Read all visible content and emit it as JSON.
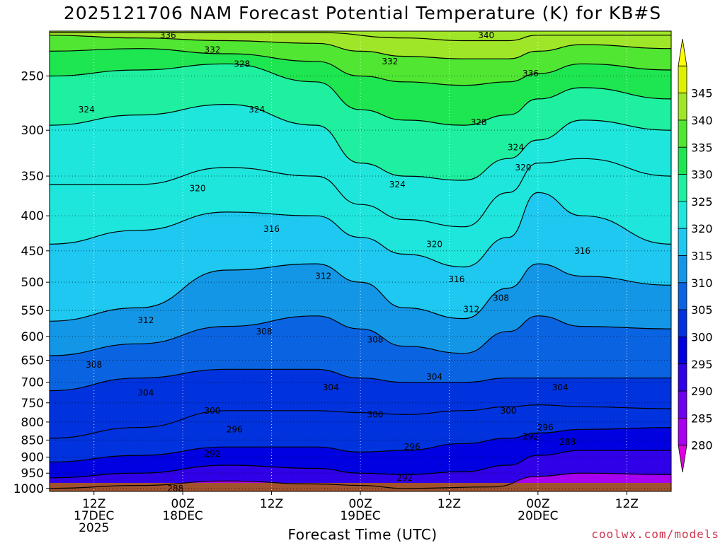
{
  "title": "2025121706 NAM Forecast Potential Temperature (K) for KB#S",
  "credit": "coolwx.com/models",
  "chart_data": {
    "type": "heatmap",
    "title": "2025121706 NAM Forecast Potential Temperature (K) for KB#S",
    "xlabel": "Forecast Time (UTC)",
    "ylabel": "",
    "y_scale": "log-pressure",
    "y_ticks": [
      250,
      300,
      350,
      400,
      450,
      500,
      550,
      600,
      650,
      700,
      750,
      800,
      850,
      900,
      950,
      1000
    ],
    "y_range_hPa": [
      1010,
      215
    ],
    "x_range_hours": [
      0,
      84
    ],
    "x_ticks": [
      {
        "hour": 6,
        "lines": [
          "12Z",
          "17DEC",
          "2025"
        ]
      },
      {
        "hour": 18,
        "lines": [
          "00Z",
          "18DEC"
        ]
      },
      {
        "hour": 30,
        "lines": [
          "12Z"
        ]
      },
      {
        "hour": 42,
        "lines": [
          "00Z",
          "19DEC"
        ]
      },
      {
        "hour": 54,
        "lines": [
          "12Z"
        ]
      },
      {
        "hour": 66,
        "lines": [
          "00Z",
          "20DEC"
        ]
      },
      {
        "hour": 78,
        "lines": [
          "12Z"
        ]
      }
    ],
    "colorbar": {
      "labels": [
        280,
        285,
        290,
        295,
        300,
        305,
        310,
        315,
        320,
        325,
        330,
        335,
        340,
        345
      ],
      "colors": [
        "#e000e0",
        "#a800f0",
        "#7000f0",
        "#3000e8",
        "#0000e0",
        "#0032dd",
        "#0a64e1",
        "#1496e6",
        "#1ec8f0",
        "#1ee6dc",
        "#1ef0a0",
        "#1ee650",
        "#50e632",
        "#a0e628",
        "#dcf000",
        "#ffff00"
      ]
    },
    "contour_interval": 4,
    "series": [
      {
        "name": "288",
        "pressure_by_hour": [
          [
            0,
            1000
          ],
          [
            12,
            990
          ],
          [
            24,
            975
          ],
          [
            36,
            985
          ],
          [
            42,
            990
          ],
          [
            48,
            1000
          ],
          [
            60,
            995
          ],
          [
            66,
            960
          ],
          [
            72,
            950
          ],
          [
            84,
            955
          ]
        ]
      },
      {
        "name": "292",
        "pressure_by_hour": [
          [
            0,
            965
          ],
          [
            12,
            950
          ],
          [
            24,
            925
          ],
          [
            36,
            935
          ],
          [
            42,
            950
          ],
          [
            48,
            955
          ],
          [
            56,
            945
          ],
          [
            62,
            925
          ],
          [
            66,
            895
          ],
          [
            72,
            880
          ],
          [
            84,
            880
          ]
        ]
      },
      {
        "name": "296",
        "pressure_by_hour": [
          [
            0,
            915
          ],
          [
            12,
            895
          ],
          [
            24,
            870
          ],
          [
            36,
            870
          ],
          [
            42,
            885
          ],
          [
            48,
            880
          ],
          [
            56,
            860
          ],
          [
            62,
            845
          ],
          [
            66,
            830
          ],
          [
            72,
            820
          ],
          [
            84,
            815
          ]
        ]
      },
      {
        "name": "300",
        "pressure_by_hour": [
          [
            0,
            845
          ],
          [
            12,
            815
          ],
          [
            24,
            770
          ],
          [
            36,
            770
          ],
          [
            42,
            775
          ],
          [
            48,
            780
          ],
          [
            56,
            770
          ],
          [
            62,
            760
          ],
          [
            66,
            755
          ],
          [
            72,
            760
          ],
          [
            84,
            765
          ]
        ]
      },
      {
        "name": "304",
        "pressure_by_hour": [
          [
            0,
            720
          ],
          [
            12,
            690
          ],
          [
            24,
            670
          ],
          [
            36,
            670
          ],
          [
            42,
            690
          ],
          [
            48,
            700
          ],
          [
            56,
            700
          ],
          [
            62,
            690
          ],
          [
            66,
            690
          ],
          [
            72,
            690
          ],
          [
            84,
            690
          ]
        ]
      },
      {
        "name": "308",
        "pressure_by_hour": [
          [
            0,
            640
          ],
          [
            12,
            615
          ],
          [
            24,
            580
          ],
          [
            36,
            560
          ],
          [
            42,
            585
          ],
          [
            48,
            620
          ],
          [
            56,
            635
          ],
          [
            62,
            590
          ],
          [
            66,
            560
          ],
          [
            72,
            580
          ],
          [
            84,
            585
          ]
        ]
      },
      {
        "name": "312",
        "pressure_by_hour": [
          [
            0,
            570
          ],
          [
            12,
            545
          ],
          [
            24,
            480
          ],
          [
            36,
            470
          ],
          [
            42,
            500
          ],
          [
            48,
            545
          ],
          [
            56,
            565
          ],
          [
            62,
            510
          ],
          [
            66,
            470
          ],
          [
            72,
            490
          ],
          [
            84,
            505
          ]
        ]
      },
      {
        "name": "316",
        "pressure_by_hour": [
          [
            0,
            440
          ],
          [
            12,
            420
          ],
          [
            24,
            395
          ],
          [
            36,
            400
          ],
          [
            42,
            430
          ],
          [
            48,
            455
          ],
          [
            56,
            475
          ],
          [
            62,
            430
          ],
          [
            66,
            370
          ],
          [
            72,
            400
          ],
          [
            84,
            440
          ]
        ]
      },
      {
        "name": "320",
        "pressure_by_hour": [
          [
            0,
            360
          ],
          [
            12,
            360
          ],
          [
            24,
            340
          ],
          [
            36,
            350
          ],
          [
            42,
            385
          ],
          [
            48,
            405
          ],
          [
            56,
            415
          ],
          [
            62,
            370
          ],
          [
            66,
            335
          ],
          [
            72,
            330
          ],
          [
            84,
            350
          ]
        ]
      },
      {
        "name": "324",
        "pressure_by_hour": [
          [
            0,
            295
          ],
          [
            12,
            285
          ],
          [
            24,
            275
          ],
          [
            36,
            295
          ],
          [
            42,
            335
          ],
          [
            48,
            350
          ],
          [
            56,
            355
          ],
          [
            62,
            330
          ],
          [
            66,
            310
          ],
          [
            72,
            290
          ],
          [
            84,
            300
          ]
        ]
      },
      {
        "name": "328",
        "pressure_by_hour": [
          [
            0,
            250
          ],
          [
            12,
            245
          ],
          [
            24,
            240
          ],
          [
            36,
            255
          ],
          [
            42,
            280
          ],
          [
            48,
            290
          ],
          [
            56,
            295
          ],
          [
            62,
            285
          ],
          [
            66,
            270
          ],
          [
            72,
            260
          ],
          [
            84,
            270
          ]
        ]
      },
      {
        "name": "332",
        "pressure_by_hour": [
          [
            0,
            230
          ],
          [
            12,
            228
          ],
          [
            24,
            232
          ],
          [
            36,
            238
          ],
          [
            42,
            250
          ],
          [
            48,
            255
          ],
          [
            56,
            258
          ],
          [
            62,
            255
          ],
          [
            66,
            248
          ],
          [
            72,
            240
          ],
          [
            84,
            245
          ]
        ]
      },
      {
        "name": "336",
        "pressure_by_hour": [
          [
            0,
            218
          ],
          [
            12,
            220
          ],
          [
            24,
            222
          ],
          [
            36,
            224
          ],
          [
            42,
            230
          ],
          [
            48,
            234
          ],
          [
            56,
            236
          ],
          [
            62,
            236
          ],
          [
            66,
            230
          ],
          [
            72,
            225
          ],
          [
            84,
            228
          ]
        ]
      },
      {
        "name": "340",
        "pressure_by_hour": [
          [
            36,
            216
          ],
          [
            48,
            220
          ],
          [
            56,
            222
          ],
          [
            62,
            222
          ],
          [
            66,
            218
          ]
        ]
      }
    ],
    "annotations": [
      {
        "text": "336",
        "hour": 16,
        "p": 218
      },
      {
        "text": "340",
        "hour": 59,
        "p": 218
      },
      {
        "text": "332",
        "hour": 22,
        "p": 229
      },
      {
        "text": "328",
        "hour": 26,
        "p": 240
      },
      {
        "text": "332",
        "hour": 46,
        "p": 238
      },
      {
        "text": "336",
        "hour": 65,
        "p": 248
      },
      {
        "text": "324",
        "hour": 5,
        "p": 280
      },
      {
        "text": "324",
        "hour": 28,
        "p": 280
      },
      {
        "text": "328",
        "hour": 58,
        "p": 292
      },
      {
        "text": "324",
        "hour": 63,
        "p": 318
      },
      {
        "text": "320",
        "hour": 64,
        "p": 340
      },
      {
        "text": "324",
        "hour": 47,
        "p": 360
      },
      {
        "text": "320",
        "hour": 20,
        "p": 365
      },
      {
        "text": "316",
        "hour": 30,
        "p": 418
      },
      {
        "text": "320",
        "hour": 52,
        "p": 440
      },
      {
        "text": "316",
        "hour": 72,
        "p": 450
      },
      {
        "text": "312",
        "hour": 37,
        "p": 490
      },
      {
        "text": "316",
        "hour": 55,
        "p": 495
      },
      {
        "text": "312",
        "hour": 13,
        "p": 568
      },
      {
        "text": "312",
        "hour": 57,
        "p": 548
      },
      {
        "text": "308",
        "hour": 61,
        "p": 527
      },
      {
        "text": "308",
        "hour": 29,
        "p": 590
      },
      {
        "text": "308",
        "hour": 44,
        "p": 607
      },
      {
        "text": "308",
        "hour": 6,
        "p": 660
      },
      {
        "text": "304",
        "hour": 13,
        "p": 725
      },
      {
        "text": "304",
        "hour": 38,
        "p": 712
      },
      {
        "text": "304",
        "hour": 52,
        "p": 687
      },
      {
        "text": "304",
        "hour": 69,
        "p": 712
      },
      {
        "text": "300",
        "hour": 22,
        "p": 770
      },
      {
        "text": "300",
        "hour": 44,
        "p": 780
      },
      {
        "text": "300",
        "hour": 62,
        "p": 770
      },
      {
        "text": "296",
        "hour": 25,
        "p": 820
      },
      {
        "text": "296",
        "hour": 49,
        "p": 870
      },
      {
        "text": "296",
        "hour": 67,
        "p": 815
      },
      {
        "text": "292",
        "hour": 22,
        "p": 890
      },
      {
        "text": "292",
        "hour": 48,
        "p": 965
      },
      {
        "text": "292",
        "hour": 65,
        "p": 840
      },
      {
        "text": "288",
        "hour": 17,
        "p": 1000
      },
      {
        "text": "288",
        "hour": 70,
        "p": 855
      }
    ]
  }
}
